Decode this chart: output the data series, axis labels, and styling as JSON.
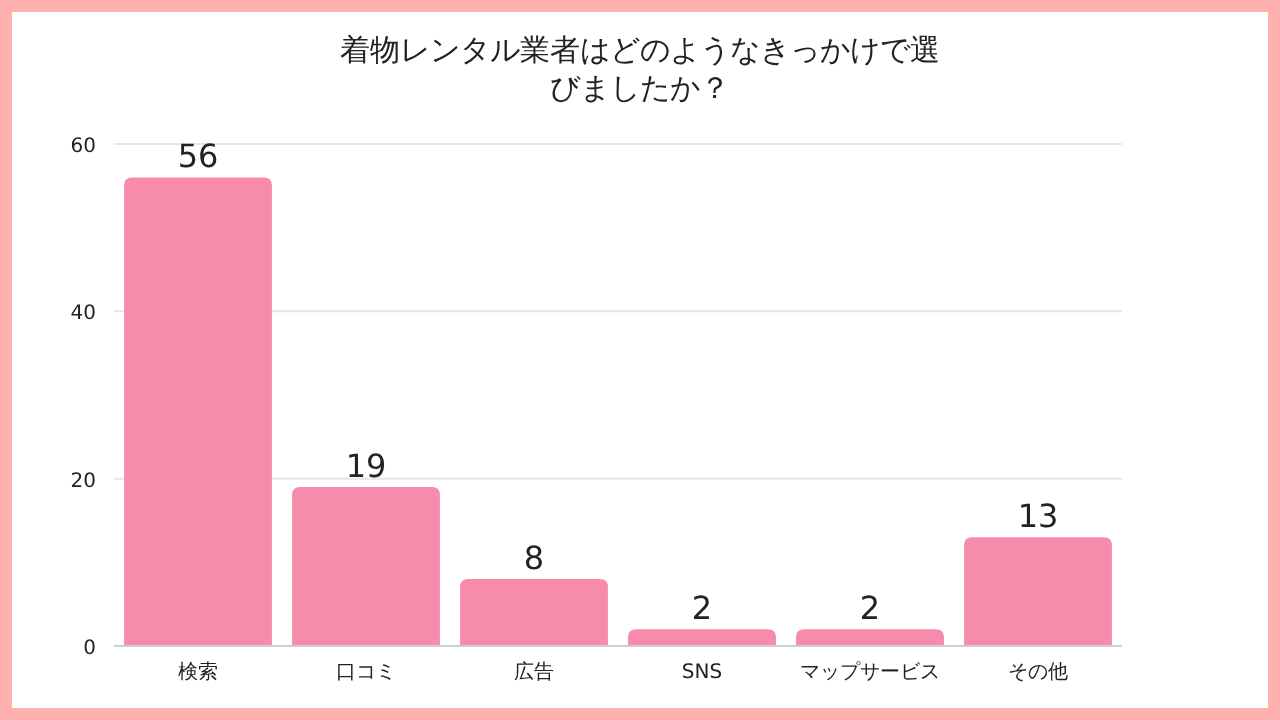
{
  "chart_data": {
    "type": "bar",
    "title": "着物レンタル業者はどのようなきっかけで選びましたか？",
    "categories": [
      "検索",
      "口コミ",
      "広告",
      "SNS",
      "マップサービス",
      "その他"
    ],
    "values": [
      56,
      19,
      8,
      2,
      2,
      13
    ],
    "color": "#f78bab",
    "ylim": [
      0,
      60
    ],
    "yticks": [
      0,
      20,
      40,
      60
    ],
    "grid": "y",
    "data_labels": true
  }
}
